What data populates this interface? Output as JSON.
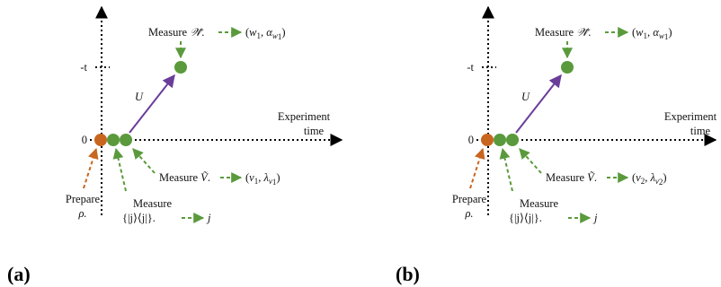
{
  "panels": [
    {
      "letter": "(a)",
      "minus_t": "-t",
      "zero": "0",
      "unitary": "U",
      "time_axis": [
        "Experiment",
        "time"
      ],
      "measure_W": {
        "prefix": "Measure ",
        "sym": "𝒲̃",
        "suffix": ".",
        "result": [
          "(",
          "w",
          "1",
          ", ",
          "α",
          "w",
          "1",
          ")"
        ]
      },
      "measure_V": {
        "prefix": "Measure ",
        "sym": "Ṽ",
        "suffix": ".",
        "result": [
          "(",
          "v",
          "1",
          ", ",
          "λ",
          "v",
          "1",
          ")"
        ]
      },
      "measure_proj": {
        "line1": "Measure",
        "line2": "{|j⟩⟨j|}.",
        "result": "j"
      },
      "prepare": {
        "line1": "Prepare",
        "line2": "ρ."
      }
    },
    {
      "letter": "(b)",
      "minus_t": "-t",
      "zero": "0",
      "unitary": "U",
      "time_axis": [
        "Experiment",
        "time"
      ],
      "measure_W": {
        "prefix": "Measure ",
        "sym": "𝒲̃",
        "suffix": ".",
        "result": [
          "(",
          "w",
          "1",
          ", ",
          "α",
          "w",
          "1",
          ")"
        ]
      },
      "measure_V": {
        "prefix": "Measure ",
        "sym": "Ṽ",
        "suffix": ".",
        "result": [
          "(",
          "v",
          "2",
          ", ",
          "λ",
          "v",
          "2",
          ")"
        ]
      },
      "measure_proj": {
        "line1": "Measure",
        "line2": "{|j⟩⟨j|}.",
        "result": "j"
      },
      "prepare": {
        "line1": "Prepare",
        "line2": "ρ."
      }
    }
  ],
  "colors": {
    "axis": "#000000",
    "measure_green": "#5a9a3c",
    "prepare_orange": "#c8661f",
    "unitary_purple": "#6a3d9a"
  }
}
